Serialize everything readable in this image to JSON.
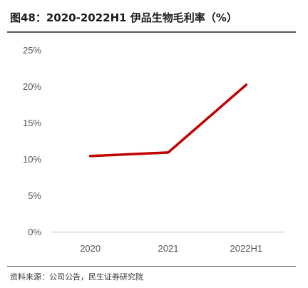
{
  "title": "图48：2020-2022H1 伊品生物毛利率（%）",
  "source": "资料来源：公司公告，民生证券研究院",
  "colors": {
    "line": "#c00000",
    "axis": "#bfbfbf",
    "rule": "#595959",
    "tick_text": "#555555"
  },
  "chart_data": {
    "type": "line",
    "title": "2020-2022H1 伊品生物毛利率（%）",
    "xlabel": "",
    "ylabel": "",
    "categories": [
      "2020",
      "2021",
      "2022H1"
    ],
    "series": [
      {
        "name": "",
        "values": [
          10.4,
          10.9,
          20.2
        ]
      }
    ],
    "ylim": [
      0,
      25
    ],
    "yticks": [
      "0%",
      "5%",
      "10%",
      "15%",
      "20%",
      "25%"
    ],
    "grid": false,
    "legend": "none"
  }
}
